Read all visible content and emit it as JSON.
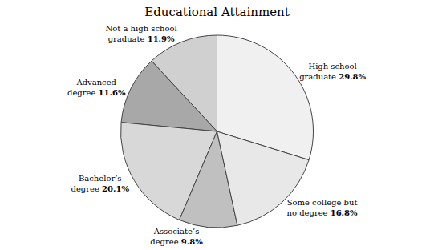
{
  "chart_data": {
    "type": "pie",
    "title": "Educational Attainment",
    "categories": [
      "High school\ngraduate",
      "Not a high school\ngraduate",
      "Advanced\ndegree",
      "Bachelor’s\ndegree",
      "Associate’s\ndegree",
      "Some college but\nno degree"
    ],
    "values": [
      29.8,
      11.9,
      11.6,
      20.1,
      9.8,
      16.8
    ],
    "value_labels": [
      "29.8%",
      "11.9%",
      "11.6%",
      "20.1%",
      "9.8%",
      "16.8%"
    ],
    "colors": [
      "#f0f0f0",
      "#d0d0d0",
      "#a8a8a8",
      "#d8d8d8",
      "#c0c0c0",
      "#e8e8e8"
    ],
    "data_labels": true
  }
}
